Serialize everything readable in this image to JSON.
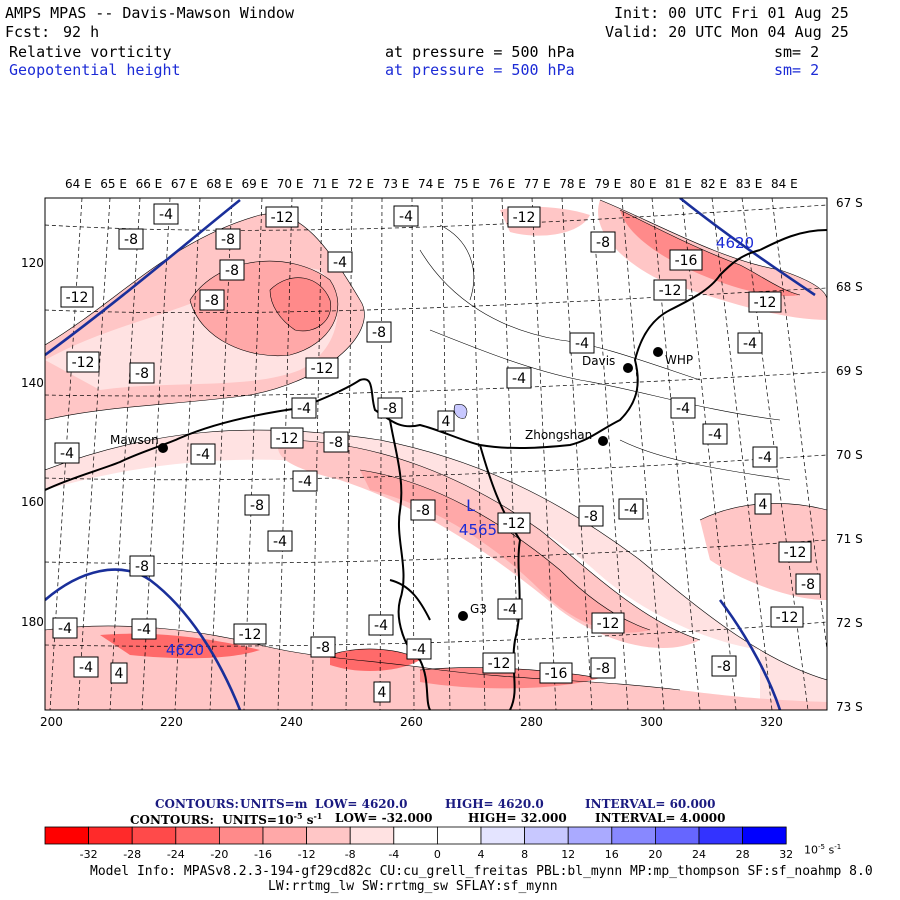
{
  "header": {
    "title": "AMPS MPAS -- Davis-Mawson Window",
    "init": "Init: 00 UTC Fri 01 Aug 25",
    "fcst_label": "Fcst:",
    "fcst_value": "92 h",
    "valid": "Valid: 20 UTC Mon 04 Aug 25",
    "fields": [
      {
        "name": "Relative vorticity",
        "level": "at pressure =  500 hPa",
        "sm": "sm= 2"
      },
      {
        "name": "Geopotential height",
        "level": "at pressure =  500 hPa",
        "sm": "sm= 2"
      }
    ]
  },
  "axes": {
    "top_lon_labels": [
      "64 E",
      "65 E",
      "66 E",
      "67 E",
      "68 E",
      "69 E",
      "70 E",
      "71 E",
      "72 E",
      "73 E",
      "74 E",
      "75 E",
      "76 E",
      "77 E",
      "78 E",
      "79 E",
      "80 E",
      "81 E",
      "82 E",
      "83 E",
      "84 E"
    ],
    "right_lat_labels": [
      "67 S",
      "68 S",
      "69 S",
      "70 S",
      "71 S",
      "72 S",
      "73 S"
    ],
    "left_grid_labels": [
      "120",
      "140",
      "160",
      "180"
    ],
    "bottom_grid_labels": [
      "200",
      "220",
      "240",
      "260",
      "280",
      "300",
      "320"
    ]
  },
  "stations": [
    {
      "name": "Mawson"
    },
    {
      "name": "Davis"
    },
    {
      "name": "WHP"
    },
    {
      "name": "Zhongshan"
    },
    {
      "name": "G3"
    }
  ],
  "contour_labels": [
    {
      "v": "-4"
    },
    {
      "v": "-8"
    },
    {
      "v": "-8"
    },
    {
      "v": "-12"
    },
    {
      "v": "-8"
    },
    {
      "v": "-4"
    },
    {
      "v": "-4"
    },
    {
      "v": "-12"
    },
    {
      "v": "-8"
    },
    {
      "v": "-12"
    },
    {
      "v": "-8"
    },
    {
      "v": "-12"
    },
    {
      "v": "-16"
    },
    {
      "v": "-12"
    },
    {
      "v": "-12"
    },
    {
      "v": "-4"
    },
    {
      "v": "-8"
    },
    {
      "v": "-12"
    },
    {
      "v": "-8"
    },
    {
      "v": "-4"
    },
    {
      "v": "-4"
    },
    {
      "v": "-4"
    },
    {
      "v": "-8"
    },
    {
      "v": "-12"
    },
    {
      "v": "-8"
    },
    {
      "v": "-4"
    },
    {
      "v": "-4"
    },
    {
      "v": "4"
    },
    {
      "v": "-4"
    },
    {
      "v": "-4"
    },
    {
      "v": "-4"
    },
    {
      "v": "-8"
    },
    {
      "v": "-8"
    },
    {
      "v": "-4"
    },
    {
      "v": "-12"
    },
    {
      "v": "-8"
    },
    {
      "v": "-4"
    },
    {
      "v": "4"
    },
    {
      "v": "-8"
    },
    {
      "v": "-4"
    },
    {
      "v": "-4"
    },
    {
      "v": "-12"
    },
    {
      "v": "-4"
    },
    {
      "v": "-12"
    },
    {
      "v": "-8"
    },
    {
      "v": "-12"
    },
    {
      "v": "-4"
    },
    {
      "v": "-4"
    },
    {
      "v": "-8"
    },
    {
      "v": "-4"
    },
    {
      "v": "-12"
    },
    {
      "v": "-16"
    },
    {
      "v": "-8"
    },
    {
      "v": "-8"
    },
    {
      "v": "4"
    },
    {
      "v": "4"
    },
    {
      "v": "-4"
    },
    {
      "v": "-12"
    }
  ],
  "height_labels": [
    {
      "v": "4620"
    },
    {
      "v": "4620"
    },
    {
      "v": "4565"
    }
  ],
  "low_marker": "L",
  "legend": {
    "contours_line1": {
      "prefix": "CONTOURS:",
      "units": "UNITS=m",
      "low": "LOW=  4620.0",
      "high": "HIGH=  4620.0",
      "interval": "INTERVAL=   60.000"
    },
    "contours_line2": {
      "prefix": "CONTOURS:",
      "units": "UNITS=10",
      "units_exp": "-5",
      "units_suffix": " s",
      "units_suffix_exp": "-1",
      "low": "LOW=  -32.000",
      "high": "HIGH=  32.000",
      "interval": "INTERVAL=    4.0000"
    },
    "colorbar_labels": [
      "-32",
      "-28",
      "-24",
      "-20",
      "-16",
      "-12",
      "-8",
      "-4",
      "0",
      "4",
      "8",
      "12",
      "16",
      "20",
      "24",
      "28",
      "32"
    ],
    "colorbar_unit": "10",
    "colorbar_unit_exp": "-5",
    "colorbar_unit_suffix": " s",
    "colorbar_unit_suffix_exp": "-1",
    "colorbar_colors": [
      "#ff0000",
      "#ff2a2a",
      "#ff4a4a",
      "#ff6a6a",
      "#ff8a8a",
      "#ffa8a8",
      "#ffc6c6",
      "#ffe2e2",
      "#ffffff",
      "#ffffff",
      "#e4e4ff",
      "#c8c8ff",
      "#aaaaff",
      "#8888ff",
      "#6666ff",
      "#3333ff",
      "#0000ff"
    ]
  },
  "model_info": {
    "line1": "Model Info: MPASv8.2.3-194-gf29cd82c CU:cu_grell_freitas PBL:bl_mynn MP:mp_thompson SF:sf_noahmp 8.0",
    "line2": "LW:rrtmg_lw SW:rrtmg_sw SFLAY:sf_mynn"
  }
}
